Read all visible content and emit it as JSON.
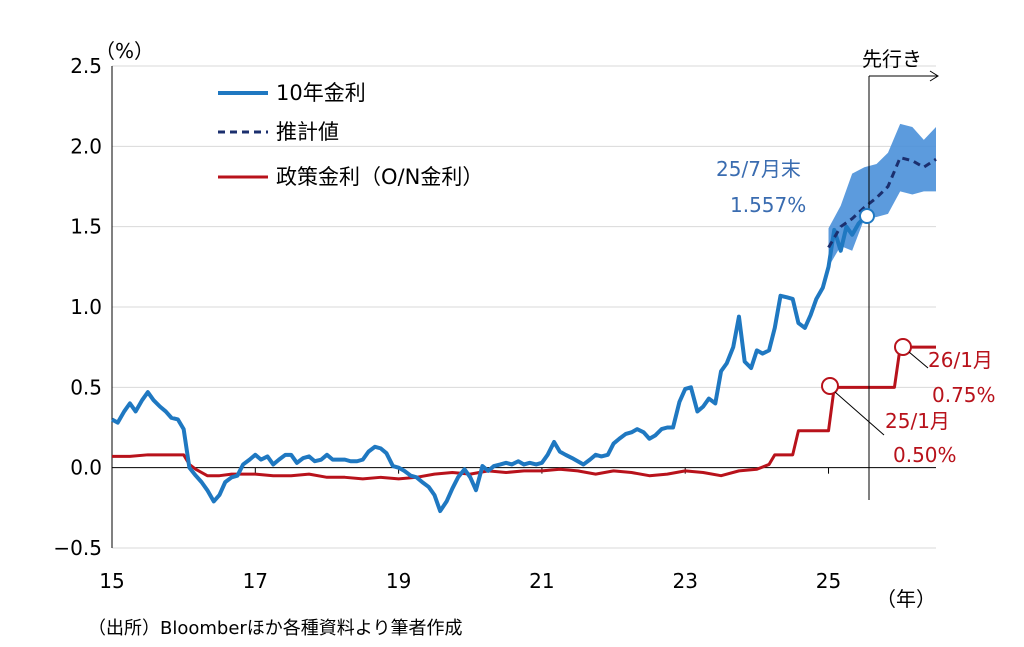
{
  "chart_data": {
    "type": "line",
    "ylabel": "（%）",
    "xlabel": "（年）",
    "ylim": [
      -0.5,
      2.5
    ],
    "yticks": [
      "2.5",
      "2.0",
      "1.5",
      "1.0",
      "0.5",
      "0.0",
      "−0.5"
    ],
    "xticks": [
      "15",
      "17",
      "19",
      "21",
      "23",
      "25"
    ],
    "legend": [
      "10年金利",
      "推計値",
      "政策金利（O/N金利）"
    ],
    "forecast_label": "先行き",
    "source": "（出所）Bloomberほか各種資料より筆者作成",
    "colors": {
      "jgb": "#1f78c1",
      "estimate": "#1b2f6e",
      "band": "#4a90d9",
      "policy": "#b8121b"
    },
    "annotations": {
      "jgb_latest": {
        "line1": "25/7月末",
        "line2": "1.557%"
      },
      "policy_2501": {
        "line1": "25/1月",
        "line2": "0.50%"
      },
      "policy_2601": {
        "line1": "26/1月",
        "line2": "0.75%"
      }
    },
    "series": [
      {
        "name": "10年金利",
        "x": [
          2015.0,
          2015.08,
          2015.17,
          2015.25,
          2015.33,
          2015.42,
          2015.5,
          2015.58,
          2015.67,
          2015.75,
          2015.83,
          2015.92,
          2016.0,
          2016.08,
          2016.17,
          2016.25,
          2016.33,
          2016.42,
          2016.5,
          2016.58,
          2016.67,
          2016.75,
          2016.83,
          2016.92,
          2017.0,
          2017.08,
          2017.17,
          2017.25,
          2017.33,
          2017.42,
          2017.5,
          2017.58,
          2017.67,
          2017.75,
          2017.83,
          2017.92,
          2018.0,
          2018.08,
          2018.17,
          2018.25,
          2018.33,
          2018.42,
          2018.5,
          2018.58,
          2018.67,
          2018.75,
          2018.83,
          2018.92,
          2019.0,
          2019.08,
          2019.17,
          2019.25,
          2019.33,
          2019.42,
          2019.5,
          2019.58,
          2019.67,
          2019.75,
          2019.83,
          2019.92,
          2020.0,
          2020.08,
          2020.17,
          2020.25,
          2020.33,
          2020.42,
          2020.5,
          2020.58,
          2020.67,
          2020.75,
          2020.83,
          2020.92,
          2021.0,
          2021.08,
          2021.17,
          2021.25,
          2021.33,
          2021.42,
          2021.5,
          2021.58,
          2021.67,
          2021.75,
          2021.83,
          2021.92,
          2022.0,
          2022.08,
          2022.17,
          2022.25,
          2022.33,
          2022.42,
          2022.5,
          2022.58,
          2022.67,
          2022.75,
          2022.83,
          2022.92,
          2023.0,
          2023.08,
          2023.17,
          2023.25,
          2023.33,
          2023.42,
          2023.5,
          2023.58,
          2023.67,
          2023.75,
          2023.83,
          2023.92,
          2024.0,
          2024.08,
          2024.17,
          2024.25,
          2024.33,
          2024.42,
          2024.5,
          2024.58,
          2024.67,
          2024.75,
          2024.83,
          2024.92,
          2025.0,
          2025.08,
          2025.17,
          2025.25,
          2025.33,
          2025.42,
          2025.5
        ],
        "values": [
          0.3,
          0.28,
          0.35,
          0.4,
          0.35,
          0.42,
          0.47,
          0.42,
          0.38,
          0.35,
          0.31,
          0.3,
          0.24,
          0.0,
          -0.05,
          -0.09,
          -0.14,
          -0.21,
          -0.17,
          -0.09,
          -0.06,
          -0.05,
          0.02,
          0.05,
          0.08,
          0.05,
          0.07,
          0.02,
          0.05,
          0.08,
          0.08,
          0.03,
          0.06,
          0.07,
          0.04,
          0.05,
          0.08,
          0.05,
          0.05,
          0.05,
          0.04,
          0.04,
          0.05,
          0.1,
          0.13,
          0.12,
          0.09,
          0.01,
          0.0,
          -0.02,
          -0.05,
          -0.06,
          -0.09,
          -0.12,
          -0.17,
          -0.27,
          -0.21,
          -0.13,
          -0.06,
          -0.01,
          -0.06,
          -0.14,
          0.01,
          -0.02,
          0.01,
          0.02,
          0.03,
          0.02,
          0.04,
          0.02,
          0.03,
          0.02,
          0.03,
          0.08,
          0.16,
          0.1,
          0.08,
          0.06,
          0.04,
          0.02,
          0.05,
          0.08,
          0.07,
          0.08,
          0.15,
          0.18,
          0.21,
          0.22,
          0.24,
          0.22,
          0.18,
          0.2,
          0.24,
          0.25,
          0.25,
          0.41,
          0.49,
          0.5,
          0.35,
          0.38,
          0.43,
          0.4,
          0.6,
          0.65,
          0.75,
          0.94,
          0.66,
          0.62,
          0.73,
          0.71,
          0.73,
          0.87,
          1.07,
          1.06,
          1.05,
          0.9,
          0.87,
          0.95,
          1.05,
          1.12,
          1.25,
          1.48,
          1.35,
          1.5,
          1.45,
          1.52,
          1.557
        ]
      },
      {
        "name": "推計値",
        "x": [
          2025.0,
          2025.17,
          2025.33,
          2025.5,
          2025.67,
          2025.83,
          2026.0,
          2026.17,
          2026.33,
          2026.5
        ],
        "values": [
          1.37,
          1.5,
          1.55,
          1.62,
          1.68,
          1.75,
          1.93,
          1.91,
          1.87,
          1.92
        ],
        "upper": [
          1.49,
          1.63,
          1.83,
          1.87,
          1.89,
          1.96,
          2.14,
          2.12,
          2.04,
          2.12
        ],
        "lower": [
          1.25,
          1.38,
          1.35,
          1.55,
          1.56,
          1.58,
          1.72,
          1.7,
          1.72,
          1.72
        ]
      },
      {
        "name": "政策金利（O/N金利）",
        "x": [
          2015.0,
          2015.25,
          2015.5,
          2015.75,
          2016.0,
          2016.08,
          2016.17,
          2016.33,
          2016.5,
          2016.67,
          2016.83,
          2017.0,
          2017.25,
          2017.5,
          2017.75,
          2018.0,
          2018.25,
          2018.5,
          2018.75,
          2019.0,
          2019.25,
          2019.5,
          2019.75,
          2020.0,
          2020.25,
          2020.5,
          2020.75,
          2021.0,
          2021.25,
          2021.5,
          2021.75,
          2022.0,
          2022.25,
          2022.5,
          2022.75,
          2023.0,
          2023.25,
          2023.5,
          2023.75,
          2024.0,
          2024.17,
          2024.25,
          2024.5,
          2024.58,
          2024.83,
          2025.0,
          2025.08,
          2025.5,
          2025.75,
          2025.92,
          2026.0,
          2026.08,
          2026.5
        ],
        "values": [
          0.07,
          0.07,
          0.08,
          0.08,
          0.08,
          0.02,
          -0.01,
          -0.05,
          -0.05,
          -0.04,
          -0.04,
          -0.04,
          -0.05,
          -0.05,
          -0.04,
          -0.06,
          -0.06,
          -0.07,
          -0.06,
          -0.07,
          -0.06,
          -0.04,
          -0.03,
          -0.04,
          -0.02,
          -0.03,
          -0.02,
          -0.02,
          -0.01,
          -0.02,
          -0.04,
          -0.02,
          -0.03,
          -0.05,
          -0.04,
          -0.02,
          -0.03,
          -0.05,
          -0.02,
          -0.01,
          0.02,
          0.08,
          0.08,
          0.23,
          0.23,
          0.23,
          0.5,
          0.5,
          0.5,
          0.5,
          0.75,
          0.75,
          0.75
        ]
      }
    ]
  }
}
